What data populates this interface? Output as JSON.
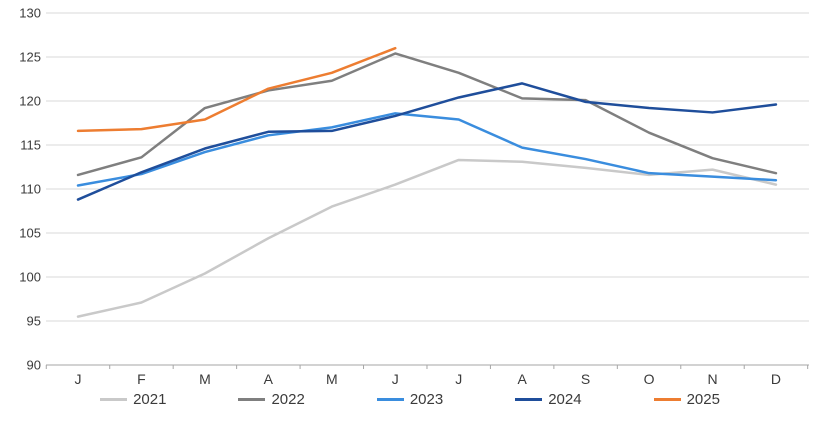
{
  "chart_data": {
    "type": "line",
    "title": "",
    "xlabel": "",
    "ylabel": "",
    "categories": [
      "J",
      "F",
      "M",
      "A",
      "M",
      "J",
      "J",
      "A",
      "S",
      "O",
      "N",
      "D"
    ],
    "yticks": [
      130,
      125,
      120,
      115,
      110,
      105,
      100,
      95,
      90
    ],
    "ylim": [
      90,
      130
    ],
    "grid": true,
    "legend_position": "bottom",
    "series": [
      {
        "name": "2021",
        "color": "#C9C9C9",
        "values": [
          95.5,
          97.1,
          100.4,
          104.4,
          108.0,
          110.5,
          113.3,
          113.1,
          112.4,
          111.6,
          112.2,
          110.5
        ]
      },
      {
        "name": "2022",
        "color": "#7F7F7F",
        "values": [
          111.6,
          113.6,
          119.2,
          121.2,
          122.3,
          125.4,
          123.2,
          120.3,
          120.1,
          116.4,
          113.5,
          111.8
        ]
      },
      {
        "name": "2023",
        "color": "#3A8DDE",
        "values": [
          110.4,
          111.7,
          114.2,
          116.1,
          117.0,
          118.6,
          117.9,
          114.7,
          113.4,
          111.8,
          111.4,
          111.0
        ]
      },
      {
        "name": "2024",
        "color": "#1F4E9B",
        "values": [
          108.8,
          111.9,
          114.6,
          116.5,
          116.6,
          118.3,
          120.4,
          122.0,
          119.9,
          119.2,
          118.7,
          119.6
        ]
      },
      {
        "name": "2025",
        "color": "#ED7D31",
        "values": [
          116.6,
          116.8,
          117.9,
          121.4,
          123.2,
          126.0,
          null,
          null,
          null,
          null,
          null,
          null
        ]
      }
    ],
    "colors": {
      "gridline": "#D9D9D9",
      "axis_line": "#A6A6A6",
      "label_text": "#3b3b3b"
    }
  }
}
